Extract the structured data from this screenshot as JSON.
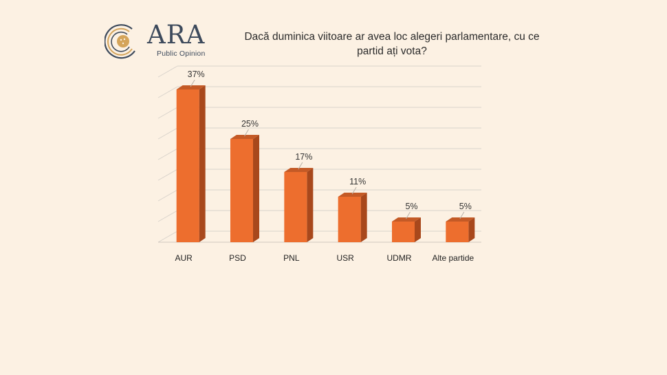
{
  "logo": {
    "name": "ARA",
    "subtitle": "Public Opinion"
  },
  "title": "Dacă duminica viitoare ar avea loc alegeri parlamentare, cu ce partid ați vota?",
  "colors": {
    "bar_front": "#ed6e2e",
    "bar_side": "#a8481c",
    "bar_top": "#c45a26",
    "accent": "#d4a45a",
    "background": "#fcf1e3"
  },
  "chart_data": {
    "type": "bar",
    "title": "Dacă duminica viitoare ar avea loc alegeri parlamentare, cu ce partid ați vota?",
    "xlabel": "",
    "ylabel": "",
    "categories": [
      "AUR",
      "PSD",
      "PNL",
      "USR",
      "UDMR",
      "Alte partide"
    ],
    "values": [
      37,
      25,
      17,
      11,
      5,
      5
    ],
    "data_labels": [
      "37%",
      "25%",
      "17%",
      "11%",
      "5%",
      "5%"
    ],
    "ylim": [
      0,
      40
    ],
    "grid": true,
    "legend": "none"
  }
}
